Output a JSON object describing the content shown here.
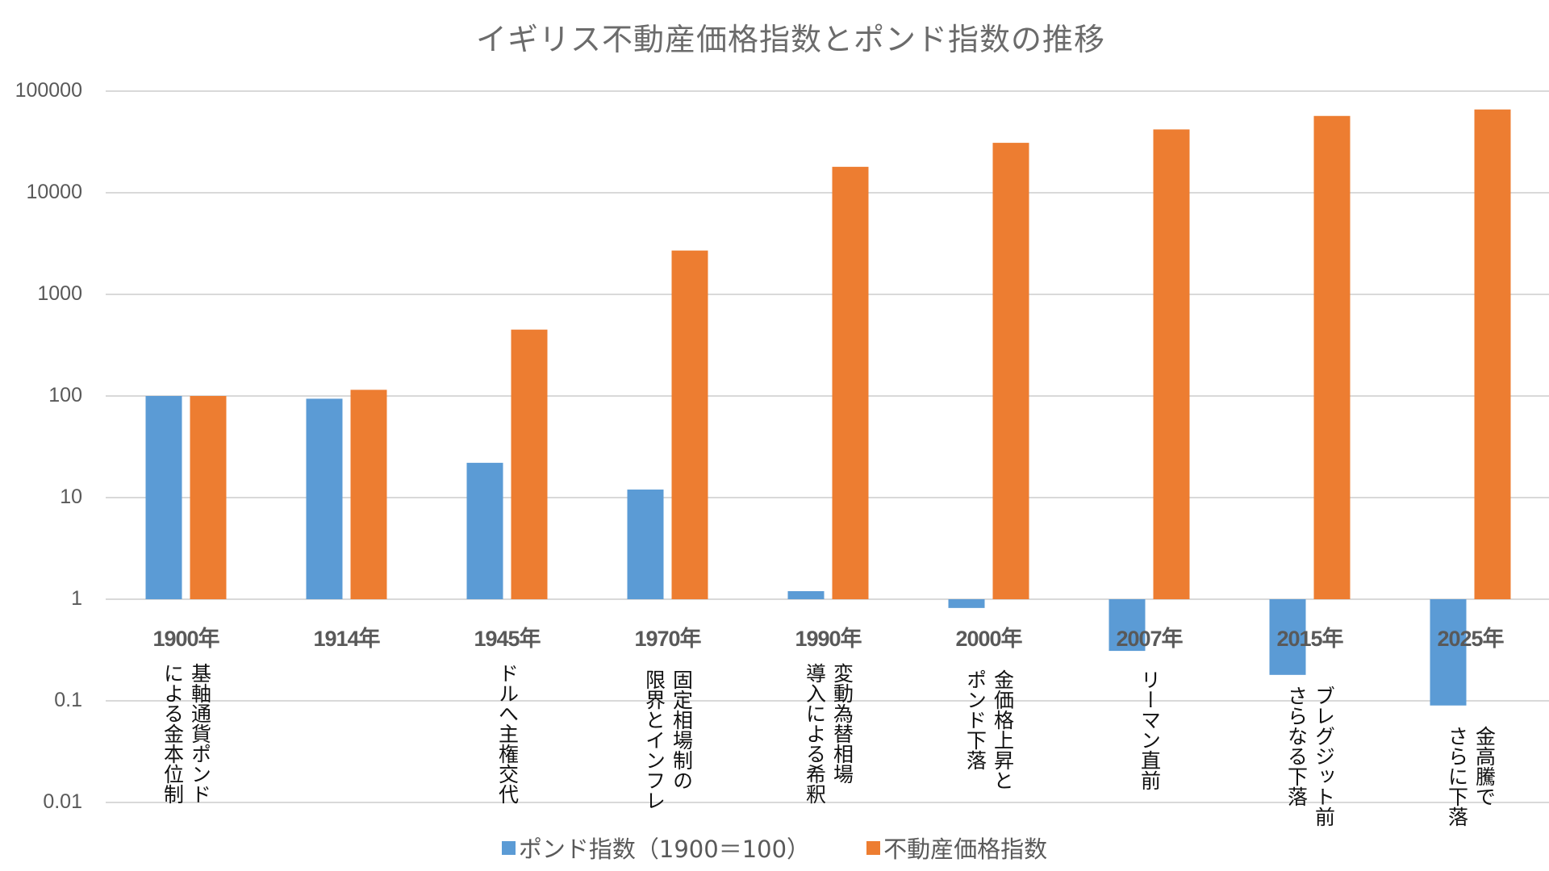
{
  "chart_data": {
    "type": "bar",
    "title": "イギリス不動産価格指数とポンド指数の推移",
    "yscale": "log",
    "ylim": [
      0.01,
      100000
    ],
    "yticks": [
      "100000",
      "10000",
      "1000",
      "100",
      "10",
      "1",
      "0.1",
      "0.01"
    ],
    "ytick_values": [
      100000,
      10000,
      1000,
      100,
      10,
      1,
      0.1,
      0.01
    ],
    "grid": true,
    "legend_position": "bottom",
    "categories": [
      "1900年",
      "1914年",
      "1945年",
      "1970年",
      "1990年",
      "2000年",
      "2007年",
      "2015年",
      "2025年"
    ],
    "annotations": [
      "基軸通貨ポンド\nによる金本位制",
      "",
      "ドルへ主権交代",
      "固定相場制の\n限界とインフレ",
      "変動為替相場\n導入による希釈",
      "金価格上昇と\nポンド下落",
      "リーマン直前",
      "ブレグジット前\nさらなる下落",
      "金高騰で\nさらに下落"
    ],
    "series": [
      {
        "name": "ポンド指数（1900＝100）",
        "color": "#5b9bd5",
        "values": [
          100,
          94,
          22,
          12,
          1.2,
          0.82,
          0.31,
          0.18,
          0.09
        ]
      },
      {
        "name": "不動産価格指数",
        "color": "#ed7d31",
        "values": [
          100,
          115,
          450,
          2700,
          18000,
          31000,
          42000,
          57000,
          66000
        ]
      }
    ]
  }
}
